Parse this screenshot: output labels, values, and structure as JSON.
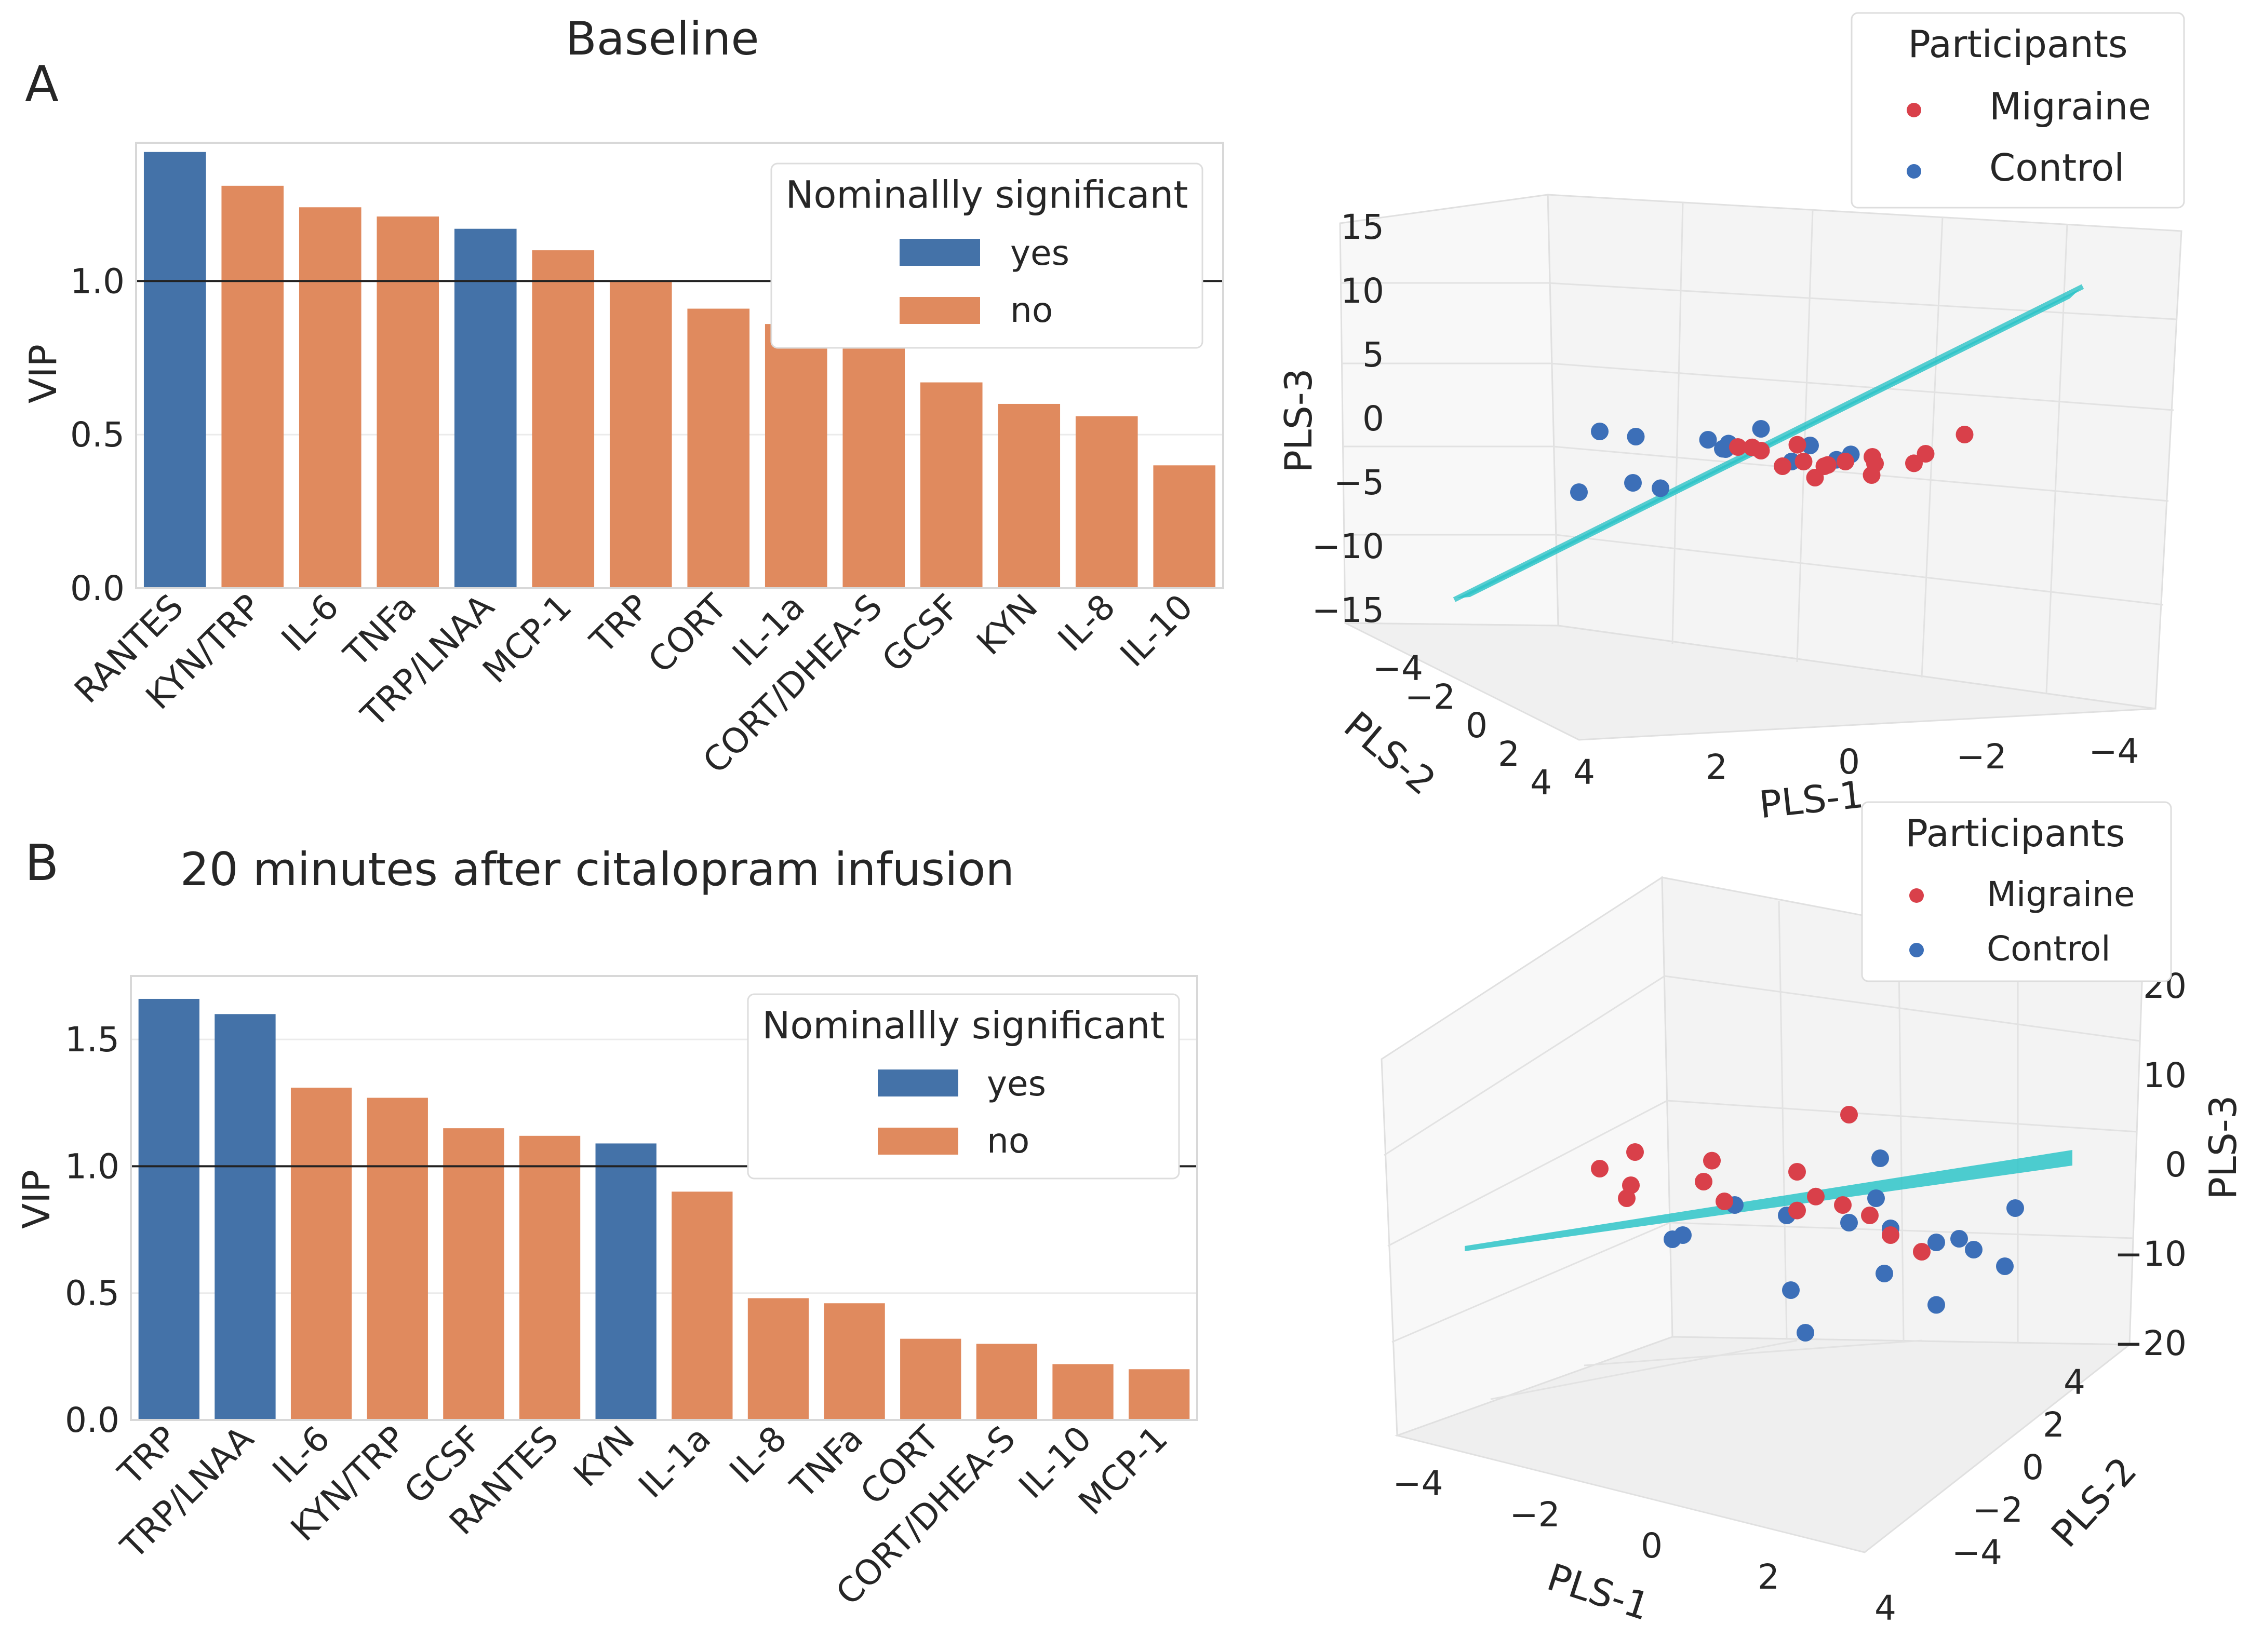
{
  "colors": {
    "yes": "#4472a8",
    "no": "#e08a5e",
    "migraine": "#d9404a",
    "control": "#3c6fb8",
    "plane": "#2ec4c8"
  },
  "chart_data": [
    {
      "type": "bar",
      "panel": "A",
      "title": "Baseline",
      "ylabel": "VIP",
      "ylim": [
        0,
        1.45
      ],
      "yticks": [
        "0.0",
        "0.5",
        "1.0"
      ],
      "reference_line": 1.0,
      "legend_title": "Nominallly significant",
      "legend": [
        "yes",
        "no"
      ],
      "categories": [
        "RANTES",
        "KYN/TRP",
        "IL-6",
        "TNFa",
        "TRP/LNAA",
        "MCP-1",
        "TRP",
        "CORT",
        "IL-1a",
        "CORT/DHEA-S",
        "GCSF",
        "KYN",
        "IL-8",
        "IL-10"
      ],
      "values": [
        1.42,
        1.31,
        1.24,
        1.21,
        1.17,
        1.1,
        1.0,
        0.91,
        0.86,
        0.81,
        0.67,
        0.6,
        0.56,
        0.4
      ],
      "significant": [
        true,
        false,
        false,
        false,
        true,
        false,
        false,
        false,
        false,
        false,
        false,
        false,
        false,
        false
      ]
    },
    {
      "type": "bar",
      "panel": "B",
      "title": "20 minutes after citalopram infusion",
      "ylabel": "VIP",
      "ylim": [
        0,
        1.75
      ],
      "yticks": [
        "0.0",
        "0.5",
        "1.0",
        "1.5"
      ],
      "reference_line": 1.0,
      "legend_title": "Nominallly significant",
      "legend": [
        "yes",
        "no"
      ],
      "categories": [
        "TRP",
        "TRP/LNAA",
        "IL-6",
        "KYN/TRP",
        "GCSF",
        "RANTES",
        "KYN",
        "IL-1a",
        "IL-8",
        "TNFa",
        "CORT",
        "CORT/DHEA-S",
        "IL-10",
        "MCP-1"
      ],
      "values": [
        1.66,
        1.6,
        1.31,
        1.27,
        1.15,
        1.12,
        1.09,
        0.9,
        0.48,
        0.46,
        0.32,
        0.3,
        0.22,
        0.2
      ],
      "significant": [
        true,
        true,
        false,
        false,
        false,
        false,
        true,
        false,
        false,
        false,
        false,
        false,
        false,
        false
      ]
    },
    {
      "type": "scatter",
      "panel": "A",
      "subtype": "3d",
      "legend_title": "Participants",
      "legend": [
        "Migraine",
        "Control"
      ],
      "xlabel": "PLS-1",
      "ylabel": "PLS-2",
      "zlabel": "PLS-3",
      "zticks": [
        "15",
        "10",
        "5",
        "0",
        "−5",
        "−10",
        "−15"
      ],
      "xticks": [
        "4",
        "2",
        "0",
        "−2",
        "−4"
      ],
      "yticks": [
        "−4",
        "−2",
        "0",
        "2",
        "4"
      ],
      "migraine": [
        [
          2.1,
          0.5,
          0.5
        ],
        [
          1.8,
          0.3,
          0.4
        ],
        [
          1.5,
          -0.2,
          0.0
        ],
        [
          1.2,
          0.0,
          -1.0
        ],
        [
          1.0,
          0.5,
          -0.5
        ],
        [
          0.8,
          -0.5,
          0.3
        ],
        [
          0.5,
          0.0,
          -1.0
        ],
        [
          0.3,
          0.5,
          -0.5
        ],
        [
          0.0,
          1.0,
          0.0
        ],
        [
          -0.2,
          0.3,
          -1.5
        ],
        [
          -0.5,
          -0.5,
          -1.0
        ],
        [
          -1.0,
          0.0,
          -0.8
        ],
        [
          -1.5,
          -1.0,
          -0.5
        ],
        [
          -2.0,
          -0.5,
          1.0
        ],
        [
          0.9,
          0.8,
          -1.5
        ],
        [
          0.2,
          -0.8,
          -1.2
        ]
      ],
      "control": [
        [
          4.0,
          -2.0,
          -3.5
        ],
        [
          3.5,
          -2.5,
          0.5
        ],
        [
          3.2,
          -1.5,
          0.5
        ],
        [
          3.4,
          -1.0,
          -2.5
        ],
        [
          3.0,
          -0.8,
          -2.8
        ],
        [
          2.6,
          0.5,
          1.0
        ],
        [
          2.2,
          0.0,
          0.2
        ],
        [
          2.0,
          -0.5,
          0.0
        ],
        [
          1.8,
          -1.0,
          0.2
        ],
        [
          1.5,
          -0.2,
          1.5
        ],
        [
          1.2,
          0.5,
          -0.5
        ],
        [
          0.8,
          0.2,
          0.5
        ],
        [
          0.6,
          1.0,
          -0.2
        ],
        [
          0.3,
          0.8,
          0.1
        ]
      ]
    },
    {
      "type": "scatter",
      "panel": "B",
      "subtype": "3d",
      "legend_title": "Participants",
      "legend": [
        "Migraine",
        "Control"
      ],
      "xlabel": "PLS-1",
      "ylabel": "PLS-2",
      "zlabel": "PLS-3",
      "zticks": [
        "20",
        "10",
        "0",
        "−10",
        "−20"
      ],
      "xticks": [
        "−4",
        "−2",
        "0",
        "2",
        "4"
      ],
      "yticks": [
        "4",
        "2",
        "0",
        "−2",
        "−4"
      ],
      "migraine": [
        [
          -2.5,
          1.0,
          2.0
        ],
        [
          -2.2,
          1.5,
          3.0
        ],
        [
          -2.0,
          0.5,
          1.0
        ],
        [
          -1.8,
          -0.5,
          0.5
        ],
        [
          -1.0,
          0.0,
          1.5
        ],
        [
          -0.5,
          -1.0,
          0.5
        ],
        [
          0.0,
          0.5,
          2.0
        ],
        [
          0.5,
          1.0,
          6.0
        ],
        [
          0.8,
          -0.5,
          0.0
        ],
        [
          1.0,
          0.0,
          -1.0
        ],
        [
          1.5,
          -1.0,
          -2.0
        ],
        [
          2.0,
          -1.5,
          -3.0
        ],
        [
          0.3,
          0.2,
          0.3
        ],
        [
          -1.2,
          1.2,
          2.5
        ],
        [
          0.2,
          -0.3,
          -0.5
        ]
      ],
      "control": [
        [
          -1.5,
          0.5,
          -3.0
        ],
        [
          -1.0,
          -1.0,
          -2.0
        ],
        [
          -0.5,
          -0.5,
          0.0
        ],
        [
          0.0,
          0.0,
          -1.0
        ],
        [
          0.5,
          1.0,
          -2.0
        ],
        [
          1.0,
          0.5,
          3.0
        ],
        [
          1.2,
          -0.5,
          0.5
        ],
        [
          1.5,
          -1.0,
          -1.5
        ],
        [
          1.8,
          0.0,
          -3.0
        ],
        [
          2.0,
          1.0,
          -4.0
        ],
        [
          2.2,
          -0.5,
          -2.5
        ],
        [
          2.5,
          0.5,
          -5.0
        ],
        [
          3.0,
          -1.0,
          0.0
        ],
        [
          0.8,
          1.5,
          -6.0
        ],
        [
          -0.2,
          1.0,
          -7.0
        ],
        [
          0.6,
          -1.5,
          -9.0
        ],
        [
          1.6,
          0.8,
          -8.0
        ]
      ]
    }
  ]
}
